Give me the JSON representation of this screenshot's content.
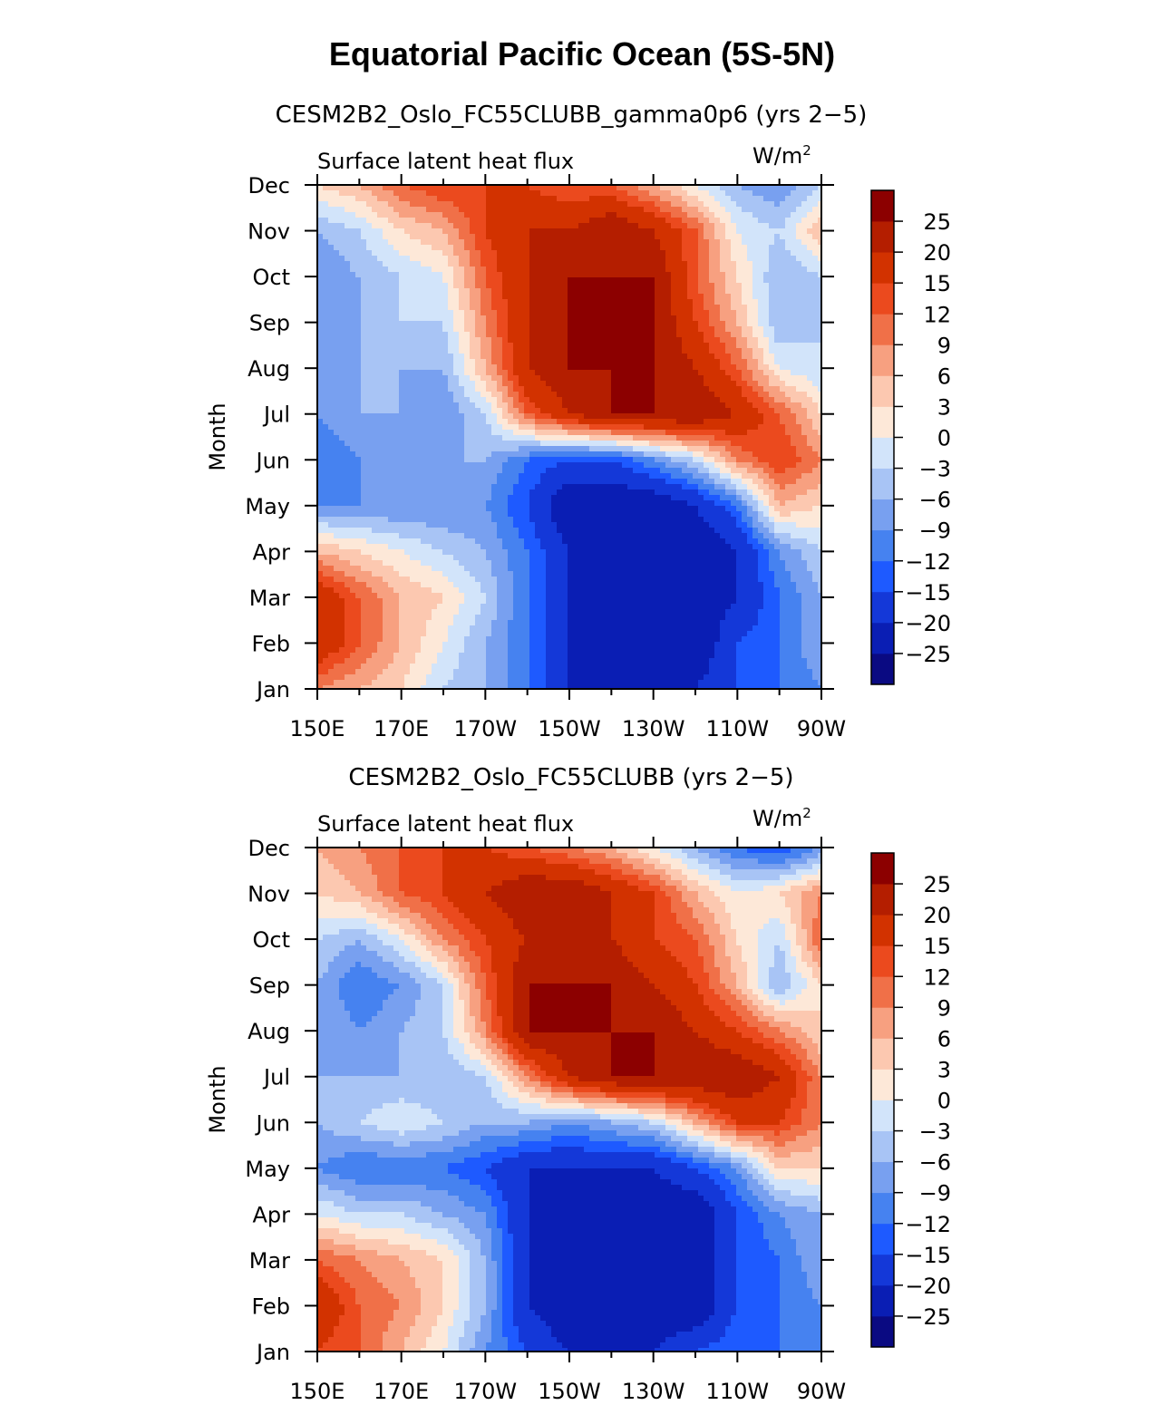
{
  "title": "Equatorial Pacific Ocean (5S-5N)",
  "chart_data": [
    {
      "type": "heatmap",
      "subtitle": "CESM2B2_Oslo_FC55CLUBB_gamma0p6 (yrs 2−5)",
      "variable": "Surface latent heat flux",
      "units_prefix": "W/m",
      "units_exp": "2",
      "ylabel": "Month",
      "xticks": [
        "150E",
        "170E",
        "170W",
        "150W",
        "130W",
        "110W",
        "90W"
      ],
      "yticks": [
        "Jan",
        "Feb",
        "Mar",
        "Apr",
        "May",
        "Jun",
        "Jul",
        "Aug",
        "Sep",
        "Oct",
        "Nov",
        "Dec"
      ],
      "x": [
        150,
        160,
        170,
        180,
        190,
        200,
        210,
        220,
        230,
        240,
        250,
        260,
        270
      ],
      "z": [
        [
          9,
          6,
          3,
          -3,
          -6,
          -12,
          -20,
          -25,
          -25,
          -20,
          -15,
          -12,
          -9
        ],
        [
          20,
          12,
          6,
          0,
          -6,
          -12,
          -20,
          -25,
          -25,
          -25,
          -15,
          -12,
          -6
        ],
        [
          20,
          12,
          6,
          3,
          -3,
          -12,
          -20,
          -25,
          -25,
          -25,
          -20,
          -12,
          -6
        ],
        [
          6,
          3,
          0,
          -3,
          -6,
          -12,
          -20,
          -25,
          -25,
          -25,
          -20,
          -9,
          -3
        ],
        [
          -9,
          -9,
          -9,
          -9,
          -9,
          -15,
          -25,
          -25,
          -25,
          -20,
          -12,
          6,
          3
        ],
        [
          -12,
          -9,
          -9,
          -6,
          -6,
          -12,
          -15,
          -15,
          -9,
          -3,
          9,
          15,
          9
        ],
        [
          -9,
          -6,
          -6,
          -9,
          -3,
          12,
          20,
          25,
          25,
          25,
          20,
          12,
          3
        ],
        [
          -9,
          -6,
          -6,
          -6,
          6,
          20,
          25,
          25,
          25,
          20,
          12,
          0,
          -3
        ],
        [
          -9,
          -6,
          -3,
          -3,
          9,
          20,
          25,
          25,
          25,
          15,
          6,
          -6,
          -3
        ],
        [
          -9,
          -6,
          -3,
          0,
          12,
          20,
          25,
          25,
          25,
          12,
          3,
          -6,
          -3
        ],
        [
          -6,
          -3,
          3,
          6,
          15,
          20,
          20,
          25,
          20,
          12,
          0,
          -3,
          6
        ],
        [
          3,
          6,
          12,
          15,
          15,
          15,
          12,
          12,
          6,
          0,
          -6,
          -9,
          -3
        ]
      ]
    },
    {
      "type": "heatmap",
      "subtitle": "CESM2B2_Oslo_FC55CLUBB (yrs 2−5)",
      "variable": "Surface latent heat flux",
      "units_prefix": "W/m",
      "units_exp": "2",
      "ylabel": "Month",
      "xticks": [
        "150E",
        "170E",
        "170W",
        "150W",
        "130W",
        "110W",
        "90W"
      ],
      "yticks": [
        "Jan",
        "Feb",
        "Mar",
        "Apr",
        "May",
        "Jun",
        "Jul",
        "Aug",
        "Sep",
        "Oct",
        "Nov",
        "Dec"
      ],
      "x": [
        150,
        160,
        170,
        180,
        190,
        200,
        210,
        220,
        230,
        240,
        250,
        260,
        270
      ],
      "z": [
        [
          15,
          12,
          6,
          0,
          -9,
          -15,
          -20,
          -20,
          -20,
          -15,
          -12,
          -12,
          -9
        ],
        [
          20,
          12,
          9,
          3,
          -6,
          -20,
          -25,
          -25,
          -25,
          -25,
          -15,
          -12,
          -9
        ],
        [
          12,
          9,
          6,
          3,
          -6,
          -20,
          -25,
          -25,
          -25,
          -25,
          -15,
          -12,
          -6
        ],
        [
          0,
          -3,
          -3,
          -6,
          -9,
          -20,
          -25,
          -25,
          -25,
          -25,
          -15,
          -9,
          -6
        ],
        [
          -9,
          -12,
          -12,
          -12,
          -15,
          -20,
          -20,
          -20,
          -20,
          -15,
          -9,
          3,
          3
        ],
        [
          -6,
          -3,
          0,
          -3,
          -6,
          -6,
          -9,
          -6,
          -3,
          6,
          15,
          15,
          9
        ],
        [
          -6,
          -6,
          -6,
          -6,
          -3,
          9,
          20,
          25,
          25,
          25,
          25,
          20,
          9
        ],
        [
          -6,
          -9,
          -6,
          -3,
          9,
          25,
          25,
          25,
          25,
          20,
          15,
          9,
          3
        ],
        [
          -6,
          -12,
          -9,
          -3,
          12,
          25,
          25,
          25,
          20,
          15,
          6,
          -6,
          3
        ],
        [
          -3,
          -6,
          0,
          9,
          15,
          20,
          20,
          20,
          15,
          12,
          3,
          -3,
          12
        ],
        [
          3,
          6,
          12,
          15,
          20,
          25,
          25,
          20,
          15,
          6,
          0,
          3,
          9
        ],
        [
          6,
          9,
          12,
          15,
          15,
          12,
          9,
          6,
          0,
          -6,
          -12,
          -15,
          -9
        ]
      ]
    }
  ],
  "colorbar": {
    "labels": [
      "25",
      "20",
      "15",
      "12",
      "9",
      "6",
      "3",
      "0",
      "−3",
      "−6",
      "−9",
      "−12",
      "−15",
      "−20",
      "−25"
    ],
    "levels": [
      -25,
      -20,
      -15,
      -12,
      -9,
      -6,
      -3,
      0,
      3,
      6,
      9,
      12,
      15,
      20,
      25
    ],
    "colors": [
      "#0a0a82",
      "#0a1eb4",
      "#1438d8",
      "#1e5aff",
      "#4682f0",
      "#78a0f0",
      "#a8c4f5",
      "#d2e4fa",
      "#fde8d8",
      "#fcc8b0",
      "#f7a080",
      "#f07048",
      "#eb4a1e",
      "#d23200",
      "#b41e00",
      "#8c0000"
    ]
  }
}
